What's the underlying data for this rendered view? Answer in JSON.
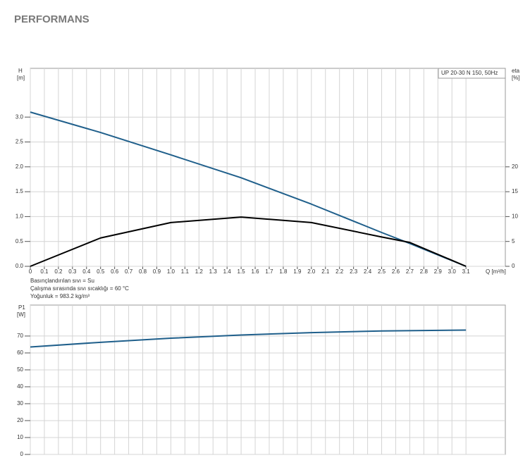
{
  "title": "PERFORMANS",
  "chart_data": [
    {
      "type": "line",
      "model": "UP 20-30 N 150, 50Hz",
      "y_label": "H",
      "y_unit": "[m]",
      "y2_label": "eta",
      "y2_unit": "[%]",
      "x_label": "Q [m³/h]",
      "notes": [
        "Basınçlandırılan sıvı = Su",
        "Çalışma sırasında sıvı sıcaklığı = 60 °C",
        "Yoğunluk = 983.2 kg/m³"
      ],
      "x": [
        0,
        0.5,
        1.0,
        1.5,
        2.0,
        2.5,
        2.7,
        3.1
      ],
      "series": [
        {
          "name": "H",
          "color": "#1f5f8b",
          "values": [
            3.1,
            2.69,
            2.24,
            1.78,
            1.25,
            0.68,
            0.46,
            0
          ]
        },
        {
          "name": "eta",
          "color": "#000000",
          "axis": "y2",
          "values": [
            0,
            5.7,
            8.8,
            9.9,
            8.8,
            5.9,
            4.8,
            0
          ]
        }
      ],
      "xlim": [
        0,
        3.38
      ],
      "xticks": [
        0,
        0.1,
        0.2,
        0.3,
        0.4,
        0.5,
        0.6,
        0.7,
        0.8,
        0.9,
        {
          "value": 1,
          "label": "1.0"
        },
        1.1,
        1.2,
        1.3,
        1.4,
        1.5,
        1.6,
        1.7,
        1.8,
        1.9,
        {
          "value": 2,
          "label": "2.0"
        },
        2.1,
        2.2,
        2.3,
        2.4,
        2.5,
        2.6,
        2.7,
        2.8,
        2.9,
        {
          "value": 3,
          "label": "3.0"
        },
        3.1
      ],
      "ylim": [
        0,
        3.98
      ],
      "yticks": [
        {
          "value": 0,
          "label": "0.0"
        },
        0.5,
        {
          "value": 1,
          "label": "1.0"
        },
        1.5,
        {
          "value": 2,
          "label": "2.0"
        },
        2.5,
        {
          "value": 3,
          "label": "3.0"
        }
      ],
      "y2lim": [
        0,
        39.8
      ],
      "y2ticks": [
        0,
        5,
        10,
        15,
        20
      ],
      "grid": true
    },
    {
      "type": "line",
      "y_label": "P1",
      "y_unit": "[W]",
      "x": [
        0,
        0.5,
        1.0,
        1.5,
        2.0,
        2.5,
        3.1
      ],
      "series": [
        {
          "name": "P1",
          "color": "#1f5f8b",
          "values": [
            63.5,
            66.3,
            68.7,
            70.6,
            72.0,
            73.0,
            73.5
          ]
        }
      ],
      "xlim": [
        0,
        3.38
      ],
      "ylim": [
        0,
        88.3
      ],
      "yticks": [
        0,
        10,
        20,
        30,
        40,
        50,
        60,
        70
      ],
      "grid": true
    }
  ]
}
